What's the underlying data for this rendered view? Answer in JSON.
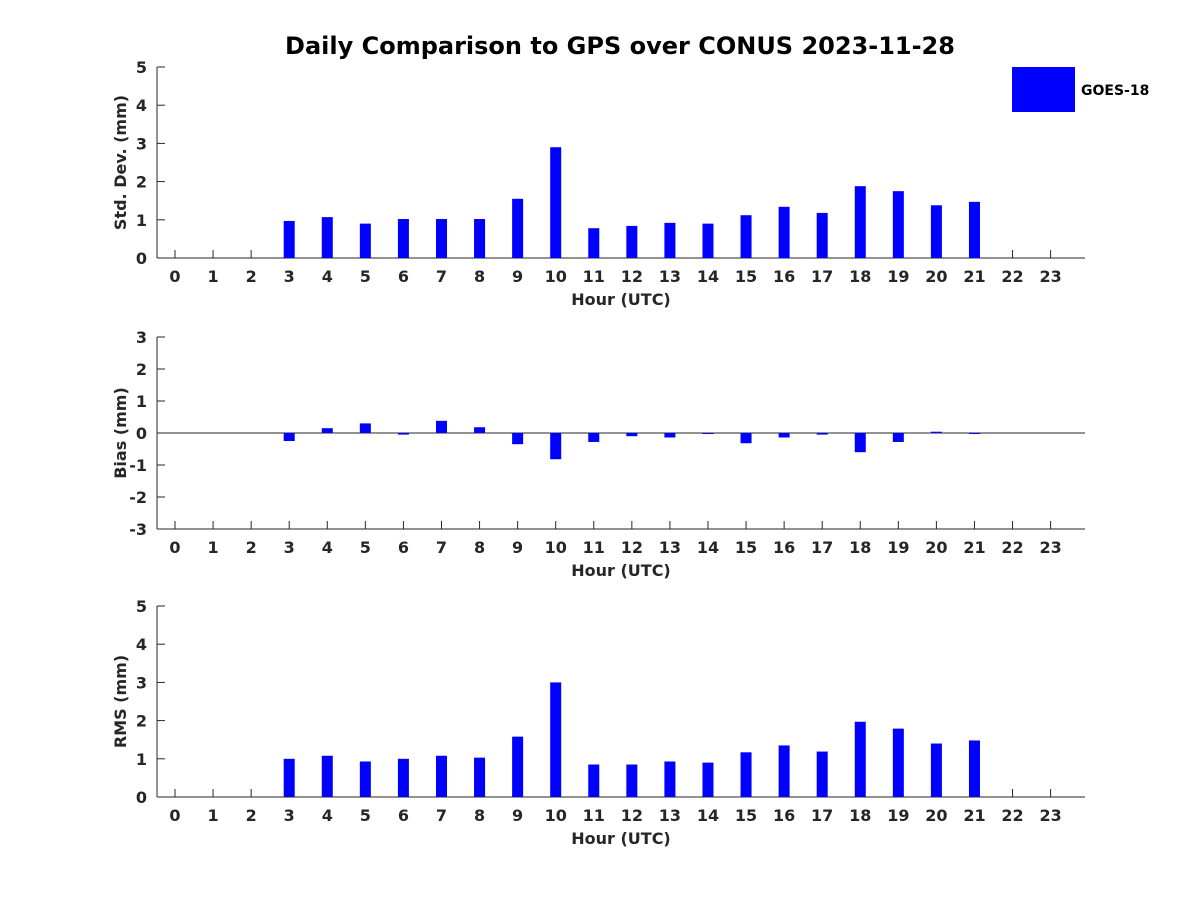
{
  "figure": {
    "title": "Daily Comparison to GPS over CONUS 2023-11-28",
    "legend": {
      "label": "GOES-18",
      "color": "#0000ff",
      "placement": "top-right"
    }
  },
  "chart_data": [
    {
      "type": "bar",
      "categories": [
        "0",
        "1",
        "2",
        "3",
        "4",
        "5",
        "6",
        "7",
        "8",
        "9",
        "10",
        "11",
        "12",
        "13",
        "14",
        "15",
        "16",
        "17",
        "18",
        "19",
        "20",
        "21",
        "22",
        "23"
      ],
      "series": [
        {
          "name": "GOES-18",
          "color": "#0000ff",
          "values": [
            null,
            null,
            null,
            0.97,
            1.07,
            0.9,
            1.02,
            1.02,
            1.02,
            1.55,
            2.9,
            0.78,
            0.84,
            0.92,
            0.9,
            1.12,
            1.34,
            1.18,
            1.88,
            1.75,
            1.38,
            1.47,
            null,
            null
          ]
        }
      ],
      "xlabel": "Hour (UTC)",
      "ylabel": "Std. Dev. (mm)",
      "ylim": [
        0,
        5
      ],
      "yticks": [
        0,
        1,
        2,
        3,
        4,
        5
      ],
      "grid": false
    },
    {
      "type": "bar",
      "categories": [
        "0",
        "1",
        "2",
        "3",
        "4",
        "5",
        "6",
        "7",
        "8",
        "9",
        "10",
        "11",
        "12",
        "13",
        "14",
        "15",
        "16",
        "17",
        "18",
        "19",
        "20",
        "21",
        "22",
        "23"
      ],
      "series": [
        {
          "name": "GOES-18",
          "color": "#0000ff",
          "values": [
            null,
            null,
            null,
            -0.25,
            0.15,
            0.3,
            -0.05,
            0.38,
            0.18,
            -0.35,
            -0.82,
            -0.28,
            -0.1,
            -0.14,
            -0.02,
            -0.32,
            -0.14,
            -0.05,
            -0.6,
            -0.28,
            0.04,
            -0.02,
            null,
            null
          ]
        }
      ],
      "xlabel": "Hour (UTC)",
      "ylabel": "Bias (mm)",
      "ylim": [
        -3,
        3
      ],
      "yticks": [
        -3,
        -2,
        -1,
        0,
        1,
        2,
        3
      ],
      "zero_line": true,
      "grid": false
    },
    {
      "type": "bar",
      "categories": [
        "0",
        "1",
        "2",
        "3",
        "4",
        "5",
        "6",
        "7",
        "8",
        "9",
        "10",
        "11",
        "12",
        "13",
        "14",
        "15",
        "16",
        "17",
        "18",
        "19",
        "20",
        "21",
        "22",
        "23"
      ],
      "series": [
        {
          "name": "GOES-18",
          "color": "#0000ff",
          "values": [
            null,
            null,
            null,
            1.0,
            1.08,
            0.93,
            1.0,
            1.08,
            1.03,
            1.58,
            3.0,
            0.85,
            0.85,
            0.93,
            0.9,
            1.17,
            1.35,
            1.19,
            1.97,
            1.79,
            1.4,
            1.48,
            null,
            null
          ]
        }
      ],
      "xlabel": "Hour (UTC)",
      "ylabel": "RMS (mm)",
      "ylim": [
        0,
        5
      ],
      "yticks": [
        0,
        1,
        2,
        3,
        4,
        5
      ],
      "grid": false
    }
  ]
}
